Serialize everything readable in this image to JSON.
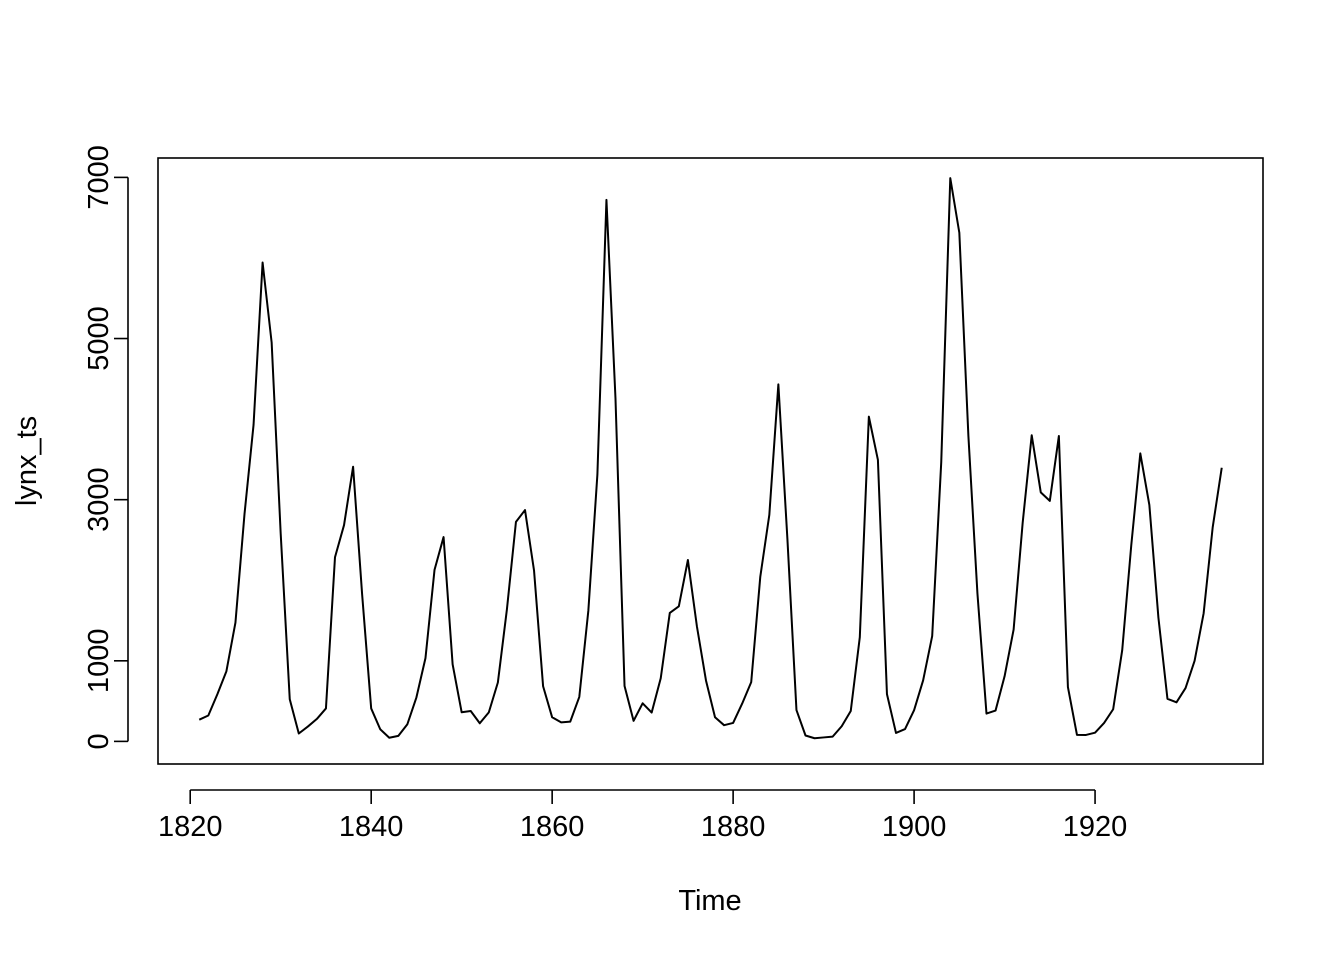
{
  "chart_data": {
    "type": "line",
    "title": "",
    "xlabel": "Time",
    "ylabel": "lynx_ts",
    "xlim": [
      1816.44,
      1938.56
    ],
    "ylim": [
      -280.68,
      7240.68
    ],
    "x_ticks": [
      1820,
      1840,
      1860,
      1880,
      1900,
      1920
    ],
    "y_ticks": [
      0,
      1000,
      3000,
      5000,
      7000
    ],
    "x_tick_labels": [
      "1820",
      "1840",
      "1860",
      "1880",
      "1900",
      "1920"
    ],
    "y_tick_labels": [
      "0",
      "1000",
      "3000",
      "5000",
      "7000"
    ],
    "grid": false,
    "line_color": "#000000",
    "series": [
      {
        "x_start": 1821,
        "x_step": 1,
        "values": [
          269,
          321,
          585,
          871,
          1475,
          2821,
          3928,
          5943,
          4950,
          2577,
          523,
          98,
          184,
          279,
          409,
          2285,
          2685,
          3409,
          1824,
          409,
          151,
          45,
          68,
          213,
          546,
          1033,
          2129,
          2536,
          957,
          361,
          377,
          225,
          360,
          731,
          1638,
          2725,
          2871,
          2119,
          684,
          299,
          236,
          245,
          552,
          1623,
          3311,
          6721,
          4254,
          687,
          255,
          473,
          358,
          784,
          1594,
          1676,
          2251,
          1426,
          756,
          299,
          201,
          229,
          469,
          736,
          2042,
          2811,
          4431,
          2511,
          389,
          73,
          39,
          49,
          59,
          188,
          377,
          1292,
          4031,
          3495,
          587,
          105,
          153,
          387,
          758,
          1307,
          3465,
          6991,
          6313,
          3794,
          1836,
          345,
          382,
          808,
          1388,
          2713,
          3800,
          3091,
          2985,
          3790,
          674,
          81,
          80,
          108,
          229,
          399,
          1132,
          2432,
          3574,
          2935,
          1537,
          529,
          485,
          662,
          1000,
          1590,
          2657,
          3396
        ]
      }
    ]
  }
}
